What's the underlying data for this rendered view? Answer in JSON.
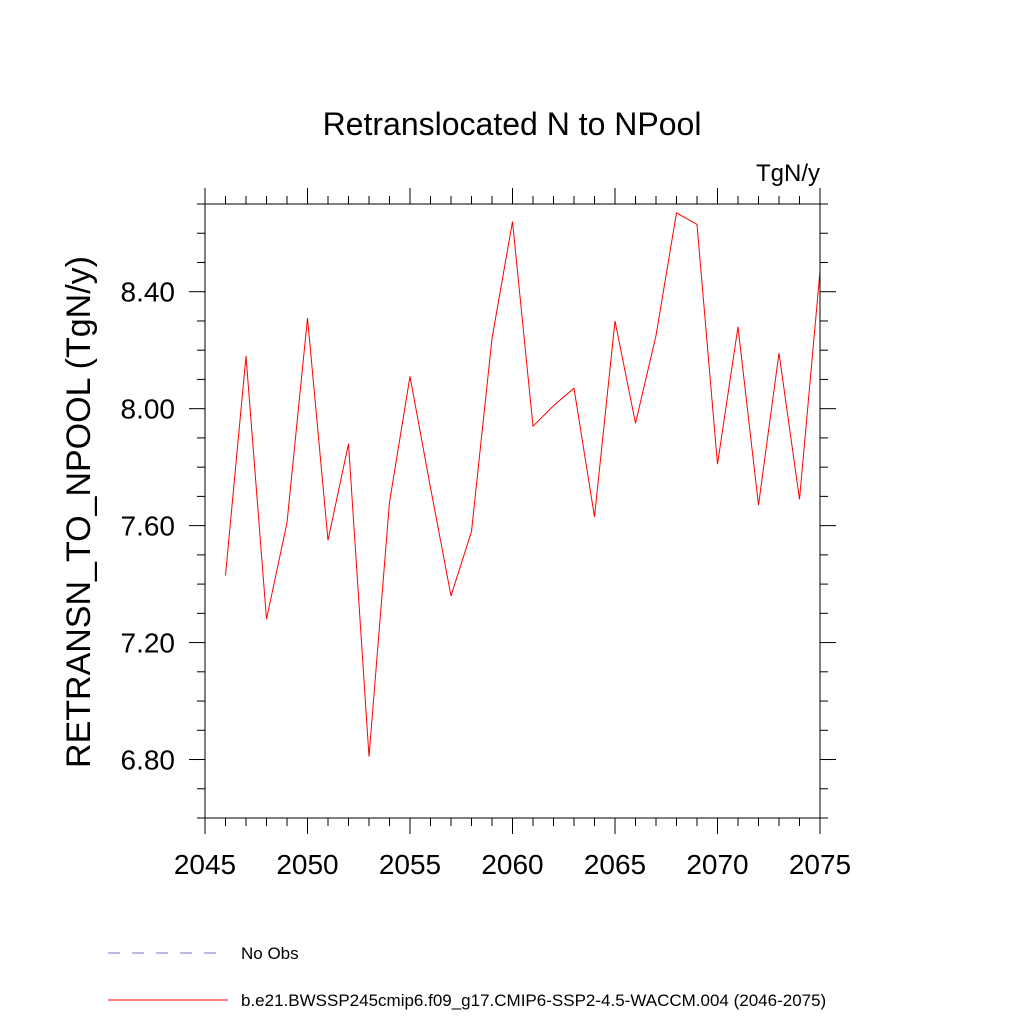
{
  "chart_data": {
    "type": "line",
    "title": "Retranslocated N to NPool",
    "units_label": "TgN/y",
    "xlabel": "",
    "ylabel": "RETRANSN_TO_NPOOL  (TgN/y)",
    "xlim": [
      2045,
      2075
    ],
    "ylim": [
      6.6,
      8.7
    ],
    "x_ticks": [
      2045,
      2050,
      2055,
      2060,
      2065,
      2070,
      2075
    ],
    "y_ticks": [
      6.8,
      7.2,
      7.6,
      8.0,
      8.4
    ],
    "y_tick_labels": [
      "6.80",
      "7.20",
      "7.60",
      "8.00",
      "8.40"
    ],
    "x_minor_step": 1,
    "y_minor_step": 0.1,
    "grid": false,
    "series": [
      {
        "name": "b.e21.BWSSP245cmip6.f09_g17.CMIP6-SSP2-4.5-WACCM.004 (2046-2075)",
        "color": "#ff0000",
        "style": "solid",
        "x": [
          2046,
          2047,
          2048,
          2049,
          2050,
          2051,
          2052,
          2053,
          2054,
          2055,
          2056,
          2057,
          2058,
          2059,
          2060,
          2061,
          2062,
          2063,
          2064,
          2065,
          2066,
          2067,
          2068,
          2069,
          2070,
          2071,
          2072,
          2073,
          2074,
          2075
        ],
        "values": [
          7.43,
          8.18,
          7.28,
          7.61,
          8.31,
          7.55,
          7.88,
          6.81,
          7.68,
          8.11,
          7.73,
          7.36,
          7.58,
          8.24,
          8.64,
          7.94,
          8.01,
          8.07,
          7.63,
          8.3,
          7.95,
          8.25,
          8.67,
          8.63,
          7.81,
          8.28,
          7.67,
          8.19,
          7.69,
          8.47
        ]
      }
    ],
    "legend": [
      {
        "label": "No Obs",
        "color": "#7b6fc4",
        "style": "dashed"
      },
      {
        "label": "b.e21.BWSSP245cmip6.f09_g17.CMIP6-SSP2-4.5-WACCM.004 (2046-2075)",
        "color": "#ff0000",
        "style": "solid"
      }
    ],
    "legend_placement": "bottom"
  }
}
